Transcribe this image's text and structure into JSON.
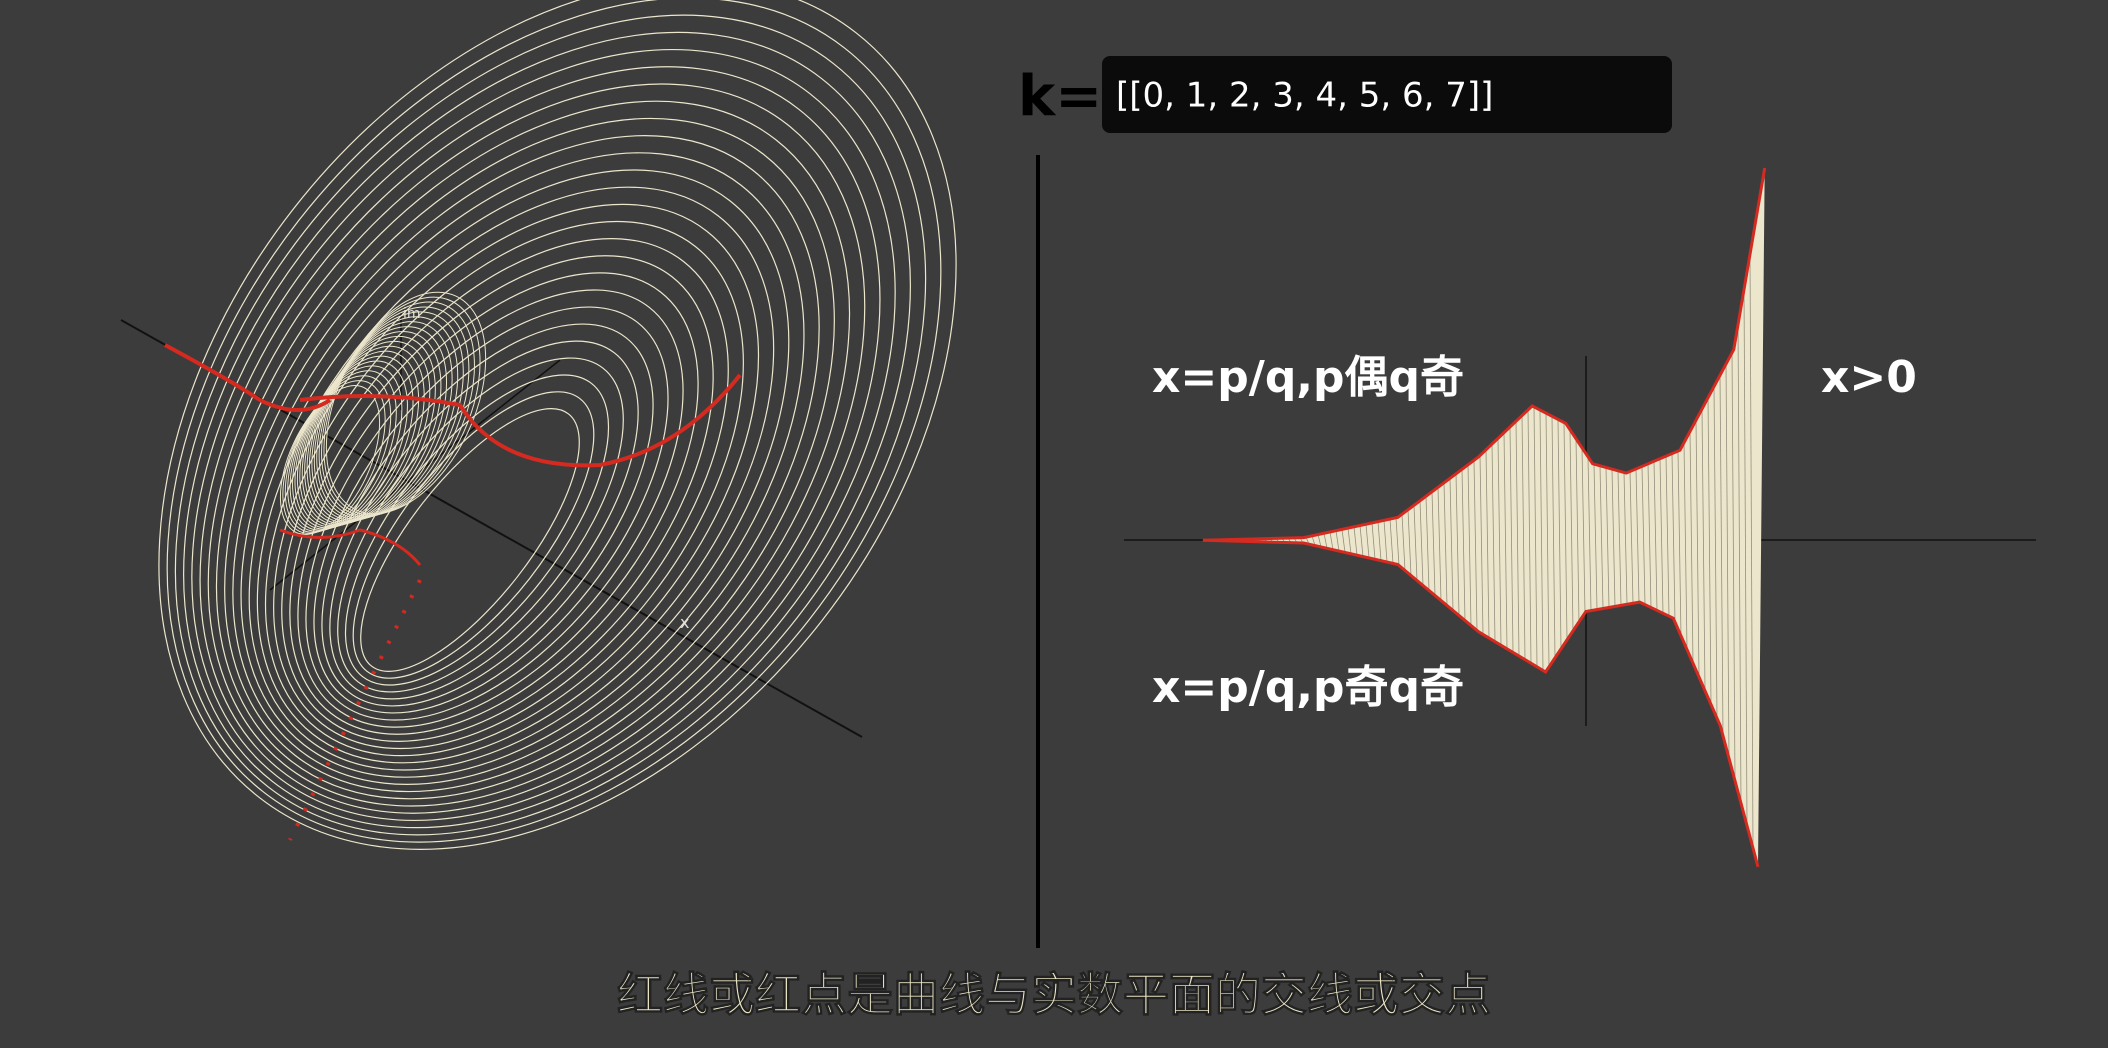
{
  "header": {
    "k_label": "k=",
    "k_value": "[[0, 1, 2, 3, 4, 5, 6, 7]]"
  },
  "plot3d": {
    "axis_im": "im",
    "axis_x": "x"
  },
  "plot2d": {
    "label_upper": "x=p/q,p偶q奇",
    "label_right": "x>0",
    "label_lower": "x=p/q,p奇q奇"
  },
  "subtitle": "红线或红点是曲线与实数平面的交线或交点"
}
